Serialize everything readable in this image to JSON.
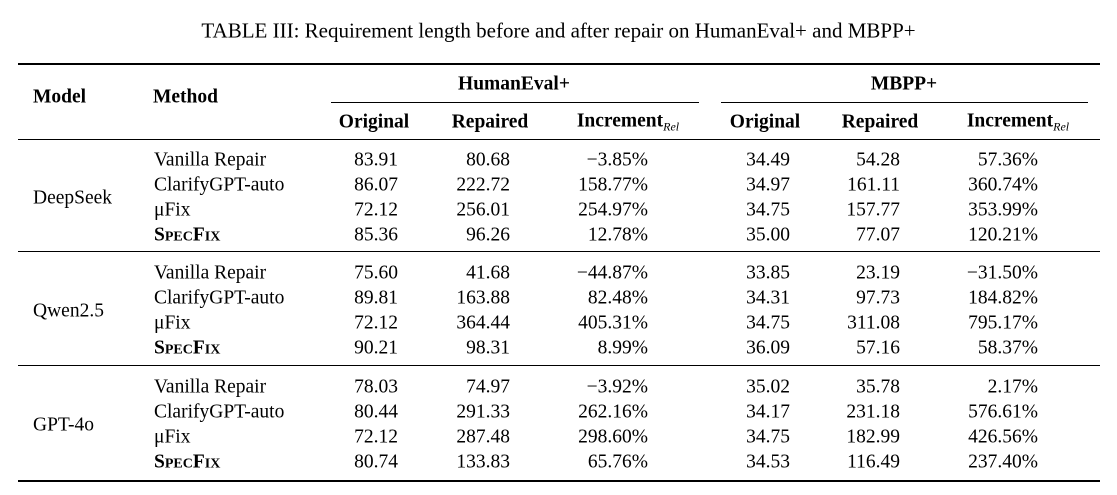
{
  "title": "TABLE III: Requirement length before and after repair on HumanEval+ and MBPP+",
  "header": {
    "model": "Model",
    "method": "Method",
    "groups": [
      "HumanEval+",
      "MBPP+"
    ],
    "columns": [
      {
        "text": "Original"
      },
      {
        "text": "Repaired"
      },
      {
        "text": "Increment",
        "sub": "Rel"
      }
    ]
  },
  "sections": [
    {
      "model": "DeepSeek",
      "rows": [
        {
          "method": "Vanilla Repair",
          "cells": [
            "83.91",
            "80.68",
            "−3.85%",
            "34.49",
            "54.28",
            "57.36%"
          ]
        },
        {
          "method": "ClarifyGPT-auto",
          "cells": [
            "86.07",
            "222.72",
            "158.77%",
            "34.97",
            "161.11",
            "360.74%"
          ]
        },
        {
          "method": "μFix",
          "cells": [
            "72.12",
            "256.01",
            "254.97%",
            "34.75",
            "157.77",
            "353.99%"
          ]
        },
        {
          "method": "SpecFix",
          "cells": [
            "85.36",
            "96.26",
            "12.78%",
            "35.00",
            "77.07",
            "120.21%"
          ]
        }
      ]
    },
    {
      "model": "Qwen2.5",
      "rows": [
        {
          "method": "Vanilla Repair",
          "cells": [
            "75.60",
            "41.68",
            "−44.87%",
            "33.85",
            "23.19",
            "−31.50%"
          ]
        },
        {
          "method": "ClarifyGPT-auto",
          "cells": [
            "89.81",
            "163.88",
            "82.48%",
            "34.31",
            "97.73",
            "184.82%"
          ]
        },
        {
          "method": "μFix",
          "cells": [
            "72.12",
            "364.44",
            "405.31%",
            "34.75",
            "311.08",
            "795.17%"
          ]
        },
        {
          "method": "SpecFix",
          "cells": [
            "90.21",
            "98.31",
            "8.99%",
            "36.09",
            "57.16",
            "58.37%"
          ]
        }
      ]
    },
    {
      "model": "GPT-4o",
      "rows": [
        {
          "method": "Vanilla Repair",
          "cells": [
            "78.03",
            "74.97",
            "−3.92%",
            "35.02",
            "35.78",
            "2.17%"
          ]
        },
        {
          "method": "ClarifyGPT-auto",
          "cells": [
            "80.44",
            "291.33",
            "262.16%",
            "34.17",
            "231.18",
            "576.61%"
          ]
        },
        {
          "method": "μFix",
          "cells": [
            "72.12",
            "287.48",
            "298.60%",
            "34.75",
            "182.99",
            "426.56%"
          ]
        },
        {
          "method": "SpecFix",
          "cells": [
            "80.74",
            "133.83",
            "65.76%",
            "34.53",
            "116.49",
            "237.40%"
          ]
        }
      ]
    }
  ]
}
